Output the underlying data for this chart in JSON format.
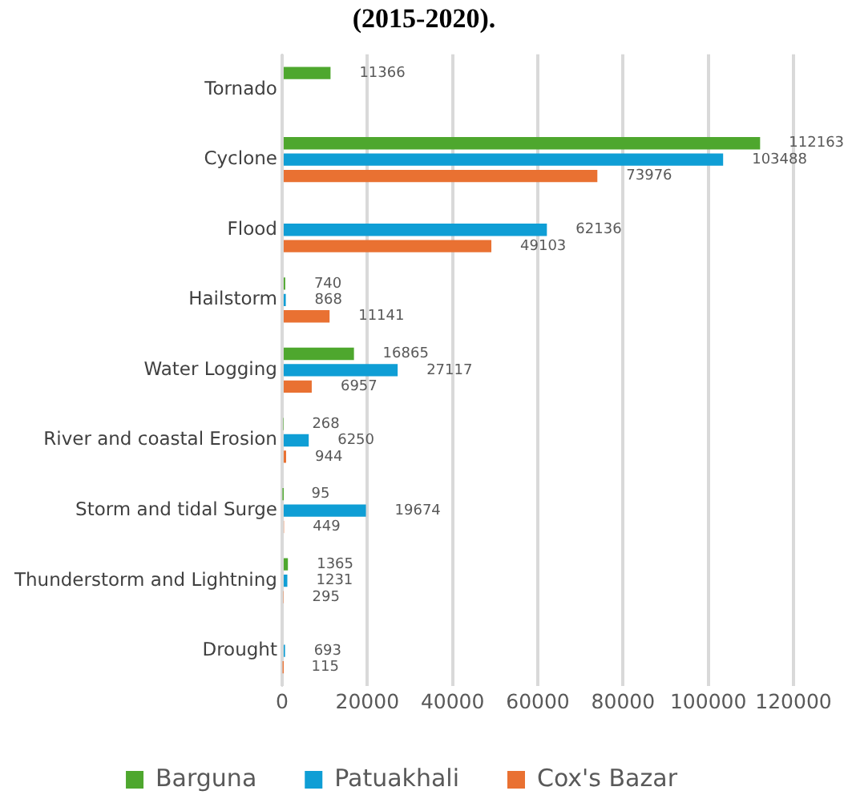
{
  "chart_data": {
    "type": "bar",
    "orientation": "horizontal",
    "title": "(2015-2020).",
    "categories": [
      "Tornado",
      "Cyclone",
      "Flood",
      "Hailstorm",
      "Water Logging",
      "River and coastal Erosion",
      "Storm and tidal Surge",
      "Thunderstorm and Lightning",
      "Drought"
    ],
    "series": [
      {
        "name": "Barguna",
        "color": "#4ea72e",
        "values": [
          11366,
          112163,
          null,
          740,
          16865,
          268,
          95,
          1365,
          null
        ]
      },
      {
        "name": "Patuakhali",
        "color": "#0f9ed5",
        "values": [
          null,
          103488,
          62136,
          868,
          27117,
          6250,
          19674,
          1231,
          693
        ]
      },
      {
        "name": "Cox's Bazar",
        "color": "#e97132",
        "values": [
          null,
          73976,
          49103,
          11141,
          6957,
          944,
          449,
          295,
          115
        ]
      }
    ],
    "xlim": [
      0,
      120000
    ],
    "xticks": [
      0,
      20000,
      40000,
      60000,
      80000,
      100000,
      120000
    ],
    "grid": "x",
    "legend": "bottom",
    "data_labels": true
  }
}
